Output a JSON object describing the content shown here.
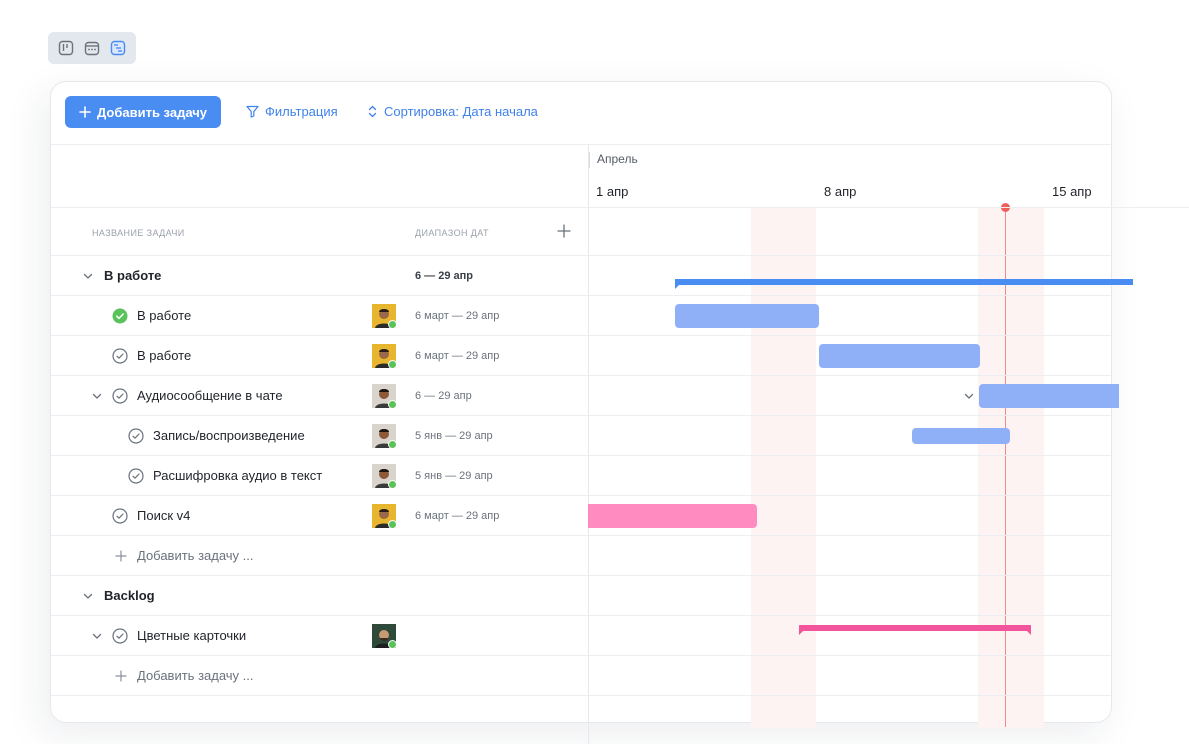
{
  "view_switch": {
    "icons": [
      "kanban-icon",
      "calendar-icon",
      "gantt-icon"
    ],
    "active": "gantt-icon"
  },
  "toolbar": {
    "add_task_label": "Добавить задачу",
    "filter_label": "Фильтрация",
    "sort_label": "Сортировка: Дата начала"
  },
  "timeline": {
    "month": "Апрель",
    "days": [
      "1 апр",
      "8 апр",
      "15 апр"
    ],
    "today_color": "#f0605a"
  },
  "columns": {
    "task_name": "НАЗВАНИЕ ЗАДАЧИ",
    "date_range": "ДИАПАЗОН ДАТ"
  },
  "colors": {
    "accent": "#4a8df2",
    "bar_blue": "#8fb0f7",
    "bar_group": "#4a8df2",
    "bar_pink": "#ff8bc1",
    "bar_magenta": "#f2559c",
    "done": "#5ac25a"
  },
  "rows": [
    {
      "label": "В работе",
      "range": "6 — 29 апр"
    },
    {
      "label": "В работе",
      "range": "6 март — 29 апр"
    },
    {
      "label": "В работе",
      "range": "6 март — 29 апр"
    },
    {
      "label": "Аудиосообщение в чате",
      "range": "6 — 29 апр"
    },
    {
      "label": "Запись/воспроизведение",
      "range": "5 янв — 29 апр"
    },
    {
      "label": "Расшифровка аудио в текст",
      "range": "5 янв — 29 апр"
    },
    {
      "label": "Поиск v4",
      "range": "6 март — 29 апр"
    },
    {
      "label": "Добавить задачу ..."
    },
    {
      "label": "Backlog"
    },
    {
      "label": "Цветные карточки"
    },
    {
      "label": "Добавить задачу ..."
    }
  ]
}
